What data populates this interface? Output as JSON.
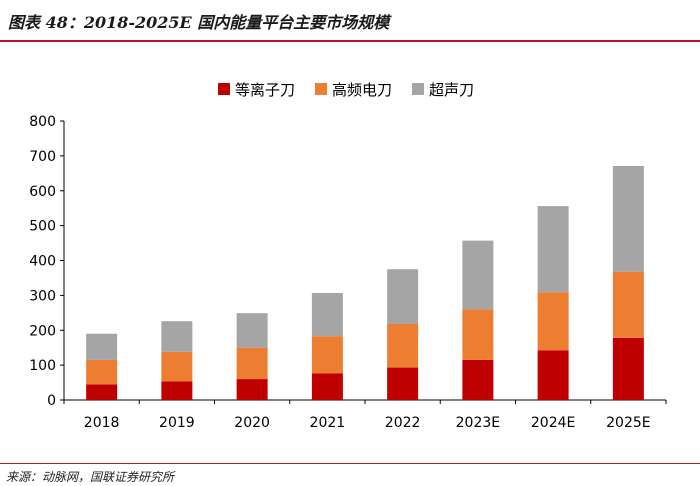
{
  "figure": {
    "title": "图表 48：2018-2025E 国内能量平台主要市场规模",
    "source": "来源：动脉网，国联证券研究所"
  },
  "colors": {
    "plasma": "#c00000",
    "hf": "#ed7d31",
    "ultrasonic": "#a5a5a5",
    "rule": "#b4162b"
  },
  "chart_data": {
    "type": "bar",
    "stacked": true,
    "title": "",
    "xlabel": "",
    "ylabel": "",
    "ylim": [
      0,
      800
    ],
    "yticks": [
      0,
      100,
      200,
      300,
      400,
      500,
      600,
      700,
      800
    ],
    "grid": false,
    "legend_position": "top",
    "categories": [
      "2018",
      "2019",
      "2020",
      "2021",
      "2022",
      "2023E",
      "2024E",
      "2025E"
    ],
    "series": [
      {
        "name": "等离子刀",
        "color_key": "plasma",
        "values": [
          45,
          53,
          60,
          76,
          93,
          115,
          142,
          178
        ]
      },
      {
        "name": "高频电刀",
        "color_key": "hf",
        "values": [
          70,
          85,
          90,
          107,
          125,
          145,
          167,
          190
        ]
      },
      {
        "name": "超声刀",
        "color_key": "ultrasonic",
        "values": [
          75,
          88,
          99,
          124,
          157,
          197,
          247,
          303
        ]
      }
    ]
  }
}
